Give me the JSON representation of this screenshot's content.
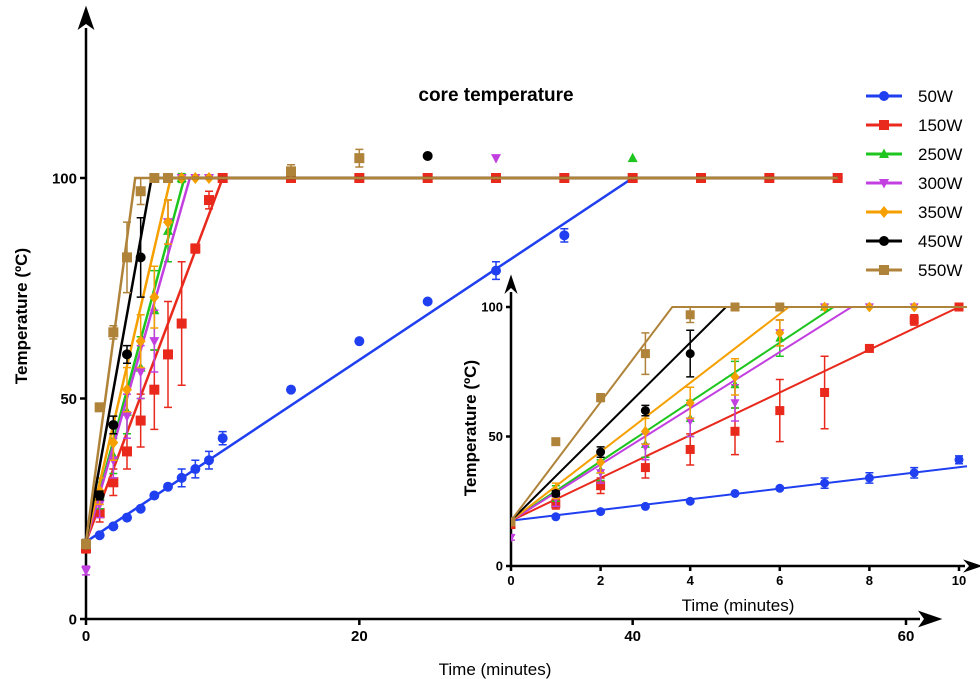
{
  "chart_data": [
    {
      "type": "line",
      "title": "core temperature",
      "xlabel": "Time (minutes)",
      "ylabel": "Temperature (ºC)",
      "xlim": [
        0,
        60
      ],
      "ylim": [
        0,
        100
      ],
      "xticks": [
        0,
        20,
        40,
        60
      ],
      "yticks": [
        0,
        50,
        100
      ],
      "legend_position": "top-right",
      "series": [
        {
          "name": "50W",
          "color": "#1f3ff0",
          "marker": "circle",
          "x": [
            0,
            1,
            2,
            3,
            4,
            5,
            6,
            7,
            8,
            9,
            10,
            15,
            20,
            25,
            30,
            35,
            40,
            45,
            50,
            55
          ],
          "y": [
            17,
            19,
            21,
            23,
            25,
            28,
            30,
            32,
            34,
            36,
            41,
            52,
            63,
            72,
            79,
            87,
            100,
            100,
            100,
            100
          ],
          "err": [
            1,
            0,
            0,
            0,
            0,
            0,
            0,
            2,
            2,
            2,
            1.5,
            0,
            0,
            0,
            2,
            1.5,
            0,
            0,
            0,
            0
          ],
          "fit": [
            [
              0,
              17.5
            ],
            [
              40,
              100
            ],
            [
              55,
              100
            ]
          ]
        },
        {
          "name": "150W",
          "color": "#e8291c",
          "marker": "square",
          "x": [
            0,
            1,
            2,
            3,
            4,
            5,
            6,
            7,
            8,
            9,
            10,
            15,
            20,
            25,
            30,
            35,
            40,
            45,
            50,
            55
          ],
          "y": [
            16,
            24,
            31,
            38,
            45,
            52,
            60,
            67,
            84,
            95,
            100,
            100,
            100,
            100,
            100,
            100,
            100,
            100,
            100,
            100
          ],
          "err": [
            1,
            2,
            3,
            4,
            6,
            9,
            12,
            14,
            1,
            2,
            0,
            0,
            0,
            0,
            0,
            0,
            0,
            0,
            0,
            0
          ],
          "fit": [
            [
              0,
              17.5
            ],
            [
              10,
              100
            ],
            [
              55,
              100
            ]
          ]
        },
        {
          "name": "250W",
          "color": "#1ec51e",
          "marker": "triangle-up",
          "x": [
            0,
            1,
            2,
            3,
            4,
            5,
            6,
            7,
            40
          ],
          "y": [
            17,
            28,
            37,
            47,
            57,
            70,
            88,
            100,
            104.5
          ],
          "err": [
            1,
            3,
            4,
            5,
            7,
            9,
            7,
            1,
            0
          ],
          "fit": [
            [
              0,
              17.5
            ],
            [
              7.2,
              100
            ],
            [
              55,
              100
            ]
          ]
        },
        {
          "name": "300W",
          "color": "#c23fe0",
          "marker": "triangle-down",
          "x": [
            0,
            1,
            2,
            3,
            4,
            5,
            6,
            7,
            8,
            9,
            30
          ],
          "y": [
            11,
            26,
            36,
            46,
            56,
            63,
            90,
            100,
            100,
            100,
            104.5
          ],
          "err": [
            1,
            3,
            4,
            5,
            6,
            7,
            5,
            0,
            0,
            0,
            0
          ],
          "fit": [
            [
              0,
              17.5
            ],
            [
              7.6,
              100
            ],
            [
              55,
              100
            ]
          ]
        },
        {
          "name": "350W",
          "color": "#f5a000",
          "marker": "diamond",
          "x": [
            0,
            1,
            2,
            3,
            4,
            5,
            6,
            7,
            8,
            9
          ],
          "y": [
            17,
            29,
            40,
            52,
            63,
            73,
            90,
            100,
            100,
            100
          ],
          "err": [
            1,
            3,
            4,
            5,
            6,
            7,
            5,
            0,
            0,
            0
          ],
          "fit": [
            [
              0,
              17.5
            ],
            [
              6.2,
              100
            ],
            [
              55,
              100
            ]
          ]
        },
        {
          "name": "450W",
          "color": "#000000",
          "marker": "circle",
          "x": [
            0,
            1,
            2,
            3,
            4,
            5,
            6,
            25
          ],
          "y": [
            17,
            28,
            44,
            60,
            82,
            100,
            100,
            105
          ],
          "err": [
            1,
            1,
            2,
            2,
            9,
            0,
            0,
            0
          ],
          "fit": [
            [
              0,
              17.5
            ],
            [
              4.8,
              100
            ],
            [
              55,
              100
            ]
          ]
        },
        {
          "name": "550W",
          "color": "#b0833a",
          "marker": "square",
          "x": [
            0,
            1,
            2,
            3,
            4,
            5,
            6,
            15,
            20
          ],
          "y": [
            17,
            48,
            65,
            82,
            97,
            100,
            100,
            101.5,
            104.5
          ],
          "err": [
            1,
            0,
            1.5,
            8,
            3,
            0,
            0,
            1.5,
            2
          ],
          "fit": [
            [
              0,
              17.5
            ],
            [
              3.6,
              100
            ],
            [
              55,
              100
            ]
          ]
        }
      ]
    },
    {
      "type": "line",
      "title": "",
      "xlabel": "Time (minutes)",
      "ylabel": "Temperature (ºC)",
      "xlim": [
        0,
        10
      ],
      "ylim": [
        0,
        100
      ],
      "xticks": [
        0,
        2,
        4,
        6,
        8,
        10
      ],
      "yticks": [
        0,
        50,
        100
      ],
      "series_ref": "same series as main chart, zoomed to 0-10 minutes"
    }
  ]
}
